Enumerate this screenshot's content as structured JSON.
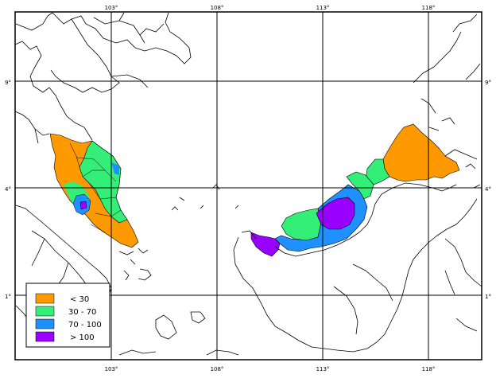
{
  "map": {
    "top_longitudes": [
      "103°",
      "108°",
      "113°",
      "118°"
    ],
    "bottom_longitudes": [
      "103°",
      "108°",
      "113°",
      "118°"
    ],
    "left_latitudes": [
      "9°",
      "4°",
      "1°"
    ],
    "right_latitudes": [
      "9°",
      "4°",
      "1°"
    ],
    "extent": {
      "lon_min": 98.5,
      "lon_max": 120.5,
      "lat_min": -2.6,
      "lat_max": 12.2
    },
    "colors": {
      "lt30": "#ff9900",
      "30_70": "#33ee77",
      "70_100": "#1e90ff",
      "gt100": "#9900ff",
      "coast": "#000000",
      "grid": "#000000"
    }
  },
  "legend": {
    "items": [
      {
        "label": "< 30",
        "color": "#ff9900"
      },
      {
        "label": "30 - 70",
        "color": "#33ee77"
      },
      {
        "label": "70 - 100",
        "color": "#1e90ff"
      },
      {
        "label": "> 100",
        "color": "#9900ff"
      }
    ]
  }
}
